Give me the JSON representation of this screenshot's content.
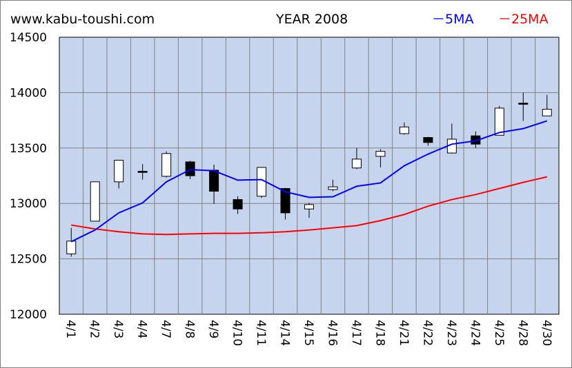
{
  "header": {
    "site": "www.kabu-toushi.com",
    "title": "YEAR 2008"
  },
  "legend": {
    "ma5": "－5MA",
    "ma25": "－25MA"
  },
  "colors": {
    "plot_background": "#c6d4ee",
    "ma5": "#0000ff",
    "ma25": "#ff0000",
    "bullish": "#ffffff",
    "bearish": "#000000"
  },
  "chart_data": {
    "type": "candlestick",
    "title": "YEAR 2008",
    "ylim": [
      12000,
      14500
    ],
    "yticks": [
      12000,
      12500,
      13000,
      13500,
      14000,
      14500
    ],
    "grid": true,
    "legend_position": "top-right",
    "categories": [
      "4/1",
      "4/2",
      "4/3",
      "4/4",
      "4/7",
      "4/8",
      "4/9",
      "4/10",
      "4/11",
      "4/14",
      "4/15",
      "4/16",
      "4/17",
      "4/18",
      "4/21",
      "4/22",
      "4/23",
      "4/24",
      "4/25",
      "4/28",
      "4/30"
    ],
    "candles": [
      {
        "open": 12545,
        "high": 12780,
        "low": 12520,
        "close": 12660
      },
      {
        "open": 12840,
        "high": 13195,
        "low": 12840,
        "close": 13195
      },
      {
        "open": 13195,
        "high": 13390,
        "low": 13135,
        "close": 13390
      },
      {
        "open": 13290,
        "high": 13355,
        "low": 13215,
        "close": 13280
      },
      {
        "open": 13245,
        "high": 13470,
        "low": 13235,
        "close": 13450
      },
      {
        "open": 13375,
        "high": 13385,
        "low": 13220,
        "close": 13250
      },
      {
        "open": 13300,
        "high": 13350,
        "low": 12995,
        "close": 13110
      },
      {
        "open": 13035,
        "high": 13065,
        "low": 12905,
        "close": 12950
      },
      {
        "open": 13065,
        "high": 13325,
        "low": 13050,
        "close": 13325
      },
      {
        "open": 13135,
        "high": 13140,
        "low": 12855,
        "close": 12915
      },
      {
        "open": 12950,
        "high": 13005,
        "low": 12870,
        "close": 12990
      },
      {
        "open": 13125,
        "high": 13215,
        "low": 13110,
        "close": 13150
      },
      {
        "open": 13320,
        "high": 13500,
        "low": 13310,
        "close": 13400
      },
      {
        "open": 13425,
        "high": 13490,
        "low": 13325,
        "close": 13470
      },
      {
        "open": 13630,
        "high": 13730,
        "low": 13620,
        "close": 13690
      },
      {
        "open": 13595,
        "high": 13600,
        "low": 13520,
        "close": 13550
      },
      {
        "open": 13455,
        "high": 13720,
        "low": 13450,
        "close": 13580
      },
      {
        "open": 13610,
        "high": 13650,
        "low": 13500,
        "close": 13535
      },
      {
        "open": 13615,
        "high": 13880,
        "low": 13615,
        "close": 13860
      },
      {
        "open": 13905,
        "high": 14000,
        "low": 13745,
        "close": 13895
      },
      {
        "open": 13790,
        "high": 13980,
        "low": 13790,
        "close": 13850
      }
    ],
    "series": [
      {
        "name": "5MA",
        "values": [
          12655,
          12760,
          12915,
          13005,
          13195,
          13305,
          13295,
          13210,
          13215,
          13105,
          13055,
          13060,
          13155,
          13185,
          13340,
          13445,
          13535,
          13565,
          13640,
          13675,
          13745
        ]
      },
      {
        "name": "25MA",
        "values": [
          12805,
          12770,
          12745,
          12725,
          12720,
          12725,
          12730,
          12730,
          12735,
          12745,
          12760,
          12780,
          12800,
          12845,
          12900,
          12975,
          13035,
          13080,
          13135,
          13190,
          13240
        ]
      }
    ]
  }
}
